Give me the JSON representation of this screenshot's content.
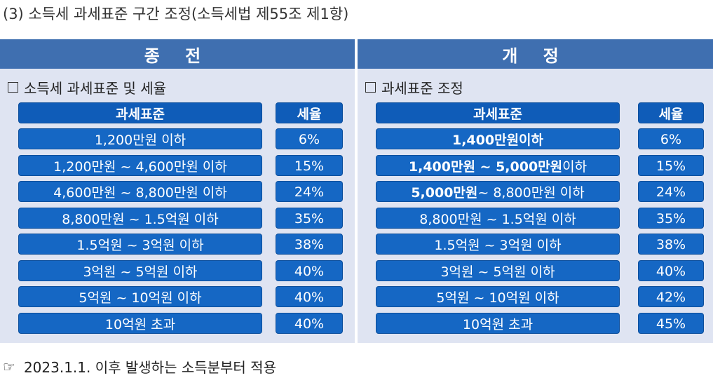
{
  "title": "(3) 소득세 과세표준 구간 조정(소득세법 제55조 제1항)",
  "left": {
    "header": "종 전",
    "subtitle": "소득세 과세표준 및 세율",
    "col_bracket": "과세표준",
    "col_rate": "세율",
    "rows": [
      {
        "bracket": "1,200만원 이하",
        "rate": "6%"
      },
      {
        "bracket": "1,200만원 ~ 4,600만원 이하",
        "rate": "15%"
      },
      {
        "bracket": "4,600만원 ~ 8,800만원 이하",
        "rate": "24%"
      },
      {
        "bracket": "8,800만원 ~ 1.5억원 이하",
        "rate": "35%"
      },
      {
        "bracket": "1.5억원 ~ 3억원 이하",
        "rate": "38%"
      },
      {
        "bracket": "3억원 ~ 5억원 이하",
        "rate": "40%"
      },
      {
        "bracket": "5억원 ~ 10억원 이하",
        "rate": "40%"
      },
      {
        "bracket": "10억원 초과",
        "rate": "40%"
      }
    ]
  },
  "right": {
    "header": "개 정",
    "subtitle": "과세표준 조정",
    "col_bracket": "과세표준",
    "col_rate": "세율",
    "rows": [
      {
        "bracket_bold": "1,400만원이하",
        "bracket": "",
        "rate": "6%"
      },
      {
        "bracket_bold": "1,400만원 ~ 5,000만원",
        "bracket": " 이하",
        "rate": "15%"
      },
      {
        "bracket_bold": "5,000만원",
        "bracket": " ~ 8,800만원 이하",
        "rate": "24%"
      },
      {
        "bracket_bold": "",
        "bracket": "8,800만원 ~ 1.5억원 이하",
        "rate": "35%"
      },
      {
        "bracket_bold": "",
        "bracket": "1.5억원 ~ 3억원 이하",
        "rate": "38%"
      },
      {
        "bracket_bold": "",
        "bracket": "3억원 ~ 5억원 이하",
        "rate": "40%"
      },
      {
        "bracket_bold": "",
        "bracket": "5억원 ~ 10억원 이하",
        "rate": "42%"
      },
      {
        "bracket_bold": "",
        "bracket": "10억원 초과",
        "rate": "45%"
      }
    ]
  },
  "footnote": {
    "icon": "pointing-hand-icon",
    "symbol": "☞",
    "text": "2023.1.1. 이후 발생하는 소득분부터 적용"
  },
  "colors": {
    "header_bg": "#3f6fb0",
    "panel_bg": "#dfe4f2",
    "cell_bg": "#1567c4"
  }
}
